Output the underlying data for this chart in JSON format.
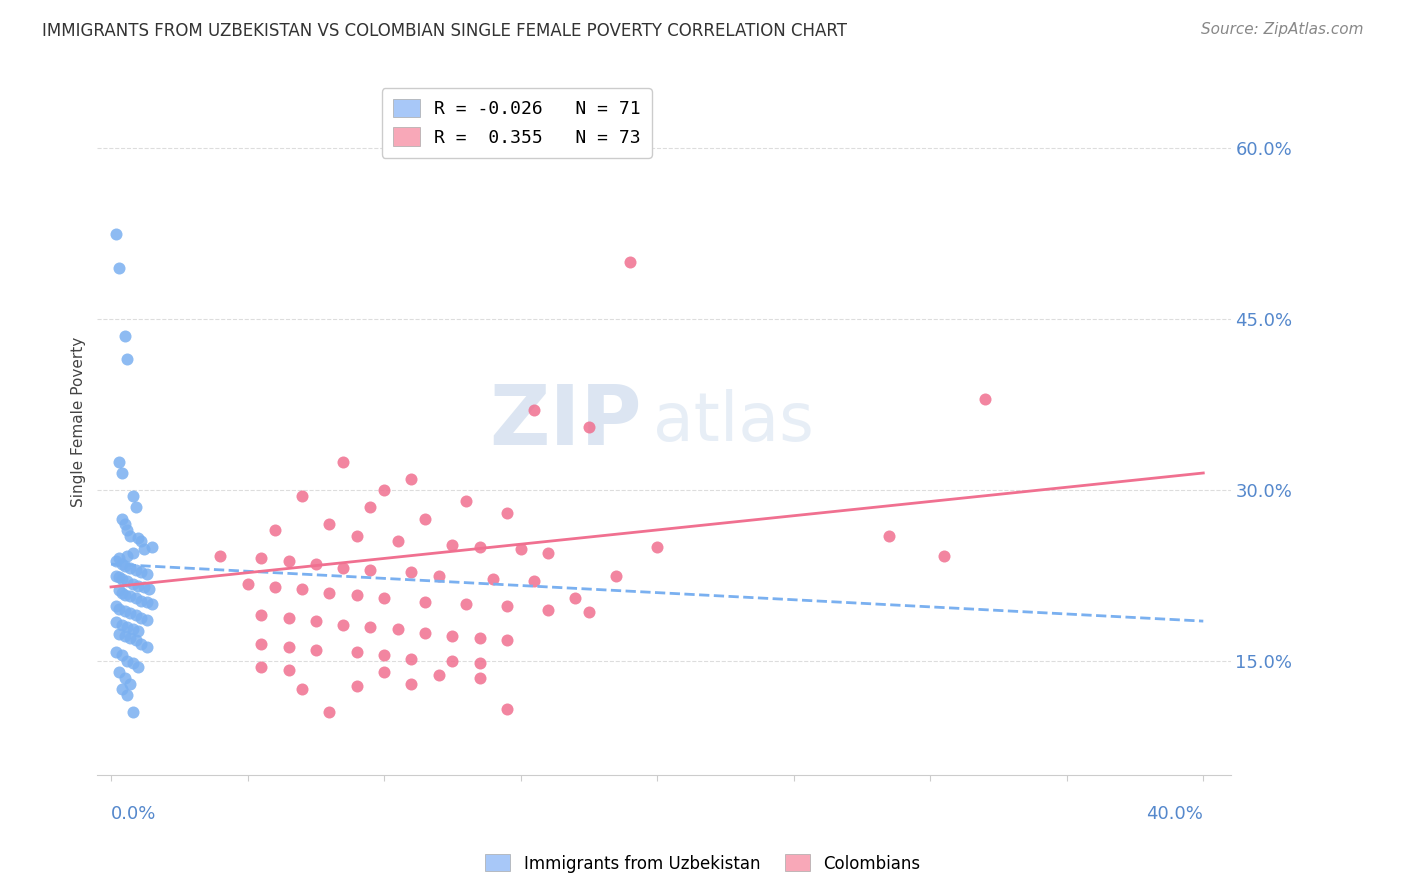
{
  "title": "IMMIGRANTS FROM UZBEKISTAN VS COLOMBIAN SINGLE FEMALE POVERTY CORRELATION CHART",
  "source": "Source: ZipAtlas.com",
  "ylabel": "Single Female Poverty",
  "ytick_values": [
    0.15,
    0.3,
    0.45,
    0.6
  ],
  "ytick_labels": [
    "15.0%",
    "30.0%",
    "45.0%",
    "60.0%"
  ],
  "xtick_values": [
    0.0,
    0.05,
    0.1,
    0.15,
    0.2,
    0.25,
    0.3,
    0.35,
    0.4
  ],
  "xlim": [
    -0.005,
    0.41
  ],
  "ylim": [
    0.05,
    0.67
  ],
  "uzbek_color": "#7ab0f0",
  "colombian_color": "#f07090",
  "uzbek_legend_color": "#a8c8f8",
  "colombian_legend_color": "#f8a8b8",
  "uzbek_label": "R = -0.026   N = 71",
  "colombian_label": "R =  0.355   N = 73",
  "uzbek_trend_x": [
    0.0,
    0.4
  ],
  "uzbek_trend_y": [
    0.235,
    0.185
  ],
  "colombian_trend_x": [
    0.0,
    0.4
  ],
  "colombian_trend_y": [
    0.215,
    0.315
  ],
  "uzbek_scatter_x": [
    0.002,
    0.003,
    0.005,
    0.006,
    0.003,
    0.004,
    0.008,
    0.009,
    0.004,
    0.005,
    0.006,
    0.007,
    0.01,
    0.011,
    0.015,
    0.012,
    0.008,
    0.006,
    0.003,
    0.002,
    0.004,
    0.005,
    0.007,
    0.009,
    0.011,
    0.013,
    0.002,
    0.003,
    0.004,
    0.006,
    0.008,
    0.01,
    0.012,
    0.014,
    0.003,
    0.004,
    0.005,
    0.007,
    0.009,
    0.011,
    0.013,
    0.015,
    0.002,
    0.003,
    0.005,
    0.007,
    0.009,
    0.011,
    0.013,
    0.002,
    0.004,
    0.006,
    0.008,
    0.01,
    0.003,
    0.005,
    0.007,
    0.009,
    0.011,
    0.013,
    0.002,
    0.004,
    0.006,
    0.008,
    0.01,
    0.003,
    0.005,
    0.007,
    0.004,
    0.006,
    0.008
  ],
  "uzbek_scatter_y": [
    0.525,
    0.495,
    0.435,
    0.415,
    0.325,
    0.315,
    0.295,
    0.285,
    0.275,
    0.27,
    0.265,
    0.26,
    0.258,
    0.255,
    0.25,
    0.248,
    0.245,
    0.242,
    0.24,
    0.238,
    0.235,
    0.233,
    0.232,
    0.23,
    0.228,
    0.226,
    0.225,
    0.224,
    0.222,
    0.22,
    0.218,
    0.216,
    0.215,
    0.213,
    0.212,
    0.21,
    0.208,
    0.207,
    0.205,
    0.203,
    0.202,
    0.2,
    0.198,
    0.196,
    0.194,
    0.192,
    0.19,
    0.188,
    0.186,
    0.184,
    0.182,
    0.18,
    0.178,
    0.176,
    0.174,
    0.172,
    0.17,
    0.168,
    0.165,
    0.162,
    0.158,
    0.155,
    0.15,
    0.148,
    0.145,
    0.14,
    0.135,
    0.13,
    0.125,
    0.12,
    0.105
  ],
  "colombian_scatter_x": [
    0.19,
    0.155,
    0.175,
    0.085,
    0.11,
    0.1,
    0.07,
    0.13,
    0.095,
    0.32,
    0.145,
    0.115,
    0.08,
    0.06,
    0.09,
    0.105,
    0.125,
    0.135,
    0.15,
    0.16,
    0.04,
    0.055,
    0.065,
    0.075,
    0.085,
    0.095,
    0.11,
    0.12,
    0.14,
    0.155,
    0.05,
    0.06,
    0.07,
    0.08,
    0.09,
    0.1,
    0.115,
    0.13,
    0.145,
    0.16,
    0.175,
    0.055,
    0.065,
    0.075,
    0.085,
    0.095,
    0.105,
    0.115,
    0.125,
    0.135,
    0.145,
    0.055,
    0.065,
    0.075,
    0.09,
    0.1,
    0.11,
    0.125,
    0.135,
    0.285,
    0.305,
    0.055,
    0.065,
    0.1,
    0.12,
    0.135,
    0.11,
    0.09,
    0.07,
    0.08,
    0.145,
    0.17,
    0.185,
    0.2
  ],
  "colombian_scatter_y": [
    0.5,
    0.37,
    0.355,
    0.325,
    0.31,
    0.3,
    0.295,
    0.29,
    0.285,
    0.38,
    0.28,
    0.275,
    0.27,
    0.265,
    0.26,
    0.255,
    0.252,
    0.25,
    0.248,
    0.245,
    0.242,
    0.24,
    0.238,
    0.235,
    0.232,
    0.23,
    0.228,
    0.225,
    0.222,
    0.22,
    0.218,
    0.215,
    0.213,
    0.21,
    0.208,
    0.205,
    0.202,
    0.2,
    0.198,
    0.195,
    0.193,
    0.19,
    0.188,
    0.185,
    0.182,
    0.18,
    0.178,
    0.175,
    0.172,
    0.17,
    0.168,
    0.165,
    0.162,
    0.16,
    0.158,
    0.155,
    0.152,
    0.15,
    0.148,
    0.26,
    0.242,
    0.145,
    0.142,
    0.14,
    0.138,
    0.135,
    0.13,
    0.128,
    0.125,
    0.105,
    0.108,
    0.205,
    0.225,
    0.25
  ],
  "watermark_zip": "ZIP",
  "watermark_atlas": "atlas",
  "bottom_legend_label1": "Immigrants from Uzbekistan",
  "bottom_legend_label2": "Colombians",
  "accent_color": "#5588cc",
  "grid_color": "#dddddd",
  "title_fontsize": 12,
  "source_fontsize": 11,
  "tick_fontsize": 13,
  "ylabel_fontsize": 11
}
